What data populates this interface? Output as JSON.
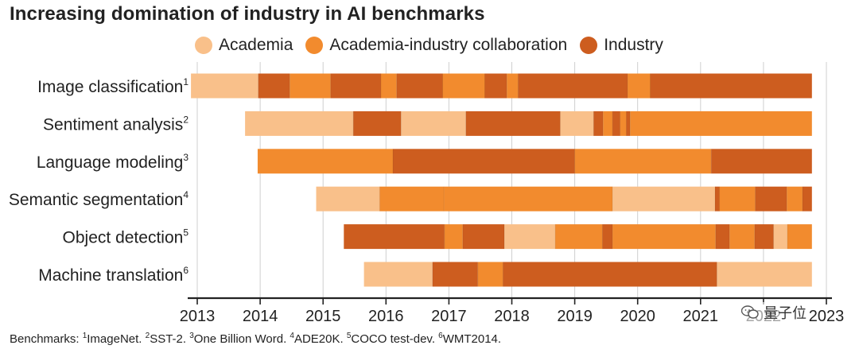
{
  "chart_data": {
    "type": "bar",
    "orientation": "horizontal-timeline",
    "title": "Increasing domination of industry in AI benchmarks",
    "xlabel": "",
    "ylabel": "",
    "xlim": [
      2013,
      2023
    ],
    "x_ticks": [
      2013,
      2014,
      2015,
      2016,
      2017,
      2018,
      2019,
      2020,
      2021,
      2022,
      2023
    ],
    "categories_legend": [
      {
        "key": "academia",
        "label": "Academia",
        "color": "#f9c08a"
      },
      {
        "key": "collab",
        "label": "Academia-industry collaboration",
        "color": "#f28b2e"
      },
      {
        "key": "industry",
        "label": "Industry",
        "color": "#cd5d1f"
      }
    ],
    "rows": [
      {
        "label": "Image classification",
        "sup": "1",
        "segments": [
          {
            "start": 2012.9,
            "end": 2013.97,
            "type": "academia"
          },
          {
            "start": 2013.97,
            "end": 2014.47,
            "type": "industry"
          },
          {
            "start": 2014.47,
            "end": 2015.12,
            "type": "collab"
          },
          {
            "start": 2015.12,
            "end": 2015.92,
            "type": "industry"
          },
          {
            "start": 2015.92,
            "end": 2016.17,
            "type": "collab"
          },
          {
            "start": 2016.17,
            "end": 2016.9,
            "type": "industry"
          },
          {
            "start": 2016.9,
            "end": 2017.57,
            "type": "collab"
          },
          {
            "start": 2017.57,
            "end": 2017.92,
            "type": "industry"
          },
          {
            "start": 2017.92,
            "end": 2018.1,
            "type": "collab"
          },
          {
            "start": 2018.1,
            "end": 2019.84,
            "type": "industry"
          },
          {
            "start": 2019.84,
            "end": 2020.2,
            "type": "collab"
          },
          {
            "start": 2020.2,
            "end": 2022.77,
            "type": "industry"
          }
        ]
      },
      {
        "label": "Sentiment analysis",
        "sup": "2",
        "segments": [
          {
            "start": 2013.76,
            "end": 2015.48,
            "type": "academia"
          },
          {
            "start": 2015.48,
            "end": 2016.24,
            "type": "industry"
          },
          {
            "start": 2016.24,
            "end": 2017.27,
            "type": "academia"
          },
          {
            "start": 2017.27,
            "end": 2018.77,
            "type": "industry"
          },
          {
            "start": 2018.77,
            "end": 2019.3,
            "type": "academia"
          },
          {
            "start": 2019.3,
            "end": 2019.45,
            "type": "industry"
          },
          {
            "start": 2019.45,
            "end": 2019.6,
            "type": "collab"
          },
          {
            "start": 2019.6,
            "end": 2019.72,
            "type": "industry"
          },
          {
            "start": 2019.72,
            "end": 2019.82,
            "type": "collab"
          },
          {
            "start": 2019.82,
            "end": 2019.88,
            "type": "industry"
          },
          {
            "start": 2019.88,
            "end": 2022.77,
            "type": "collab"
          }
        ]
      },
      {
        "label": "Language modeling",
        "sup": "3",
        "segments": [
          {
            "start": 2013.96,
            "end": 2016.11,
            "type": "collab"
          },
          {
            "start": 2016.11,
            "end": 2019.0,
            "type": "industry"
          },
          {
            "start": 2019.0,
            "end": 2021.17,
            "type": "collab"
          },
          {
            "start": 2021.17,
            "end": 2022.77,
            "type": "industry"
          }
        ]
      },
      {
        "label": "Semantic segmentation",
        "sup": "4",
        "segments": [
          {
            "start": 2014.89,
            "end": 2015.9,
            "type": "academia"
          },
          {
            "start": 2015.9,
            "end": 2016.92,
            "type": "collab"
          },
          {
            "start": 2016.92,
            "end": 2019.6,
            "type": "collab"
          },
          {
            "start": 2019.6,
            "end": 2021.23,
            "type": "academia"
          },
          {
            "start": 2021.23,
            "end": 2021.3,
            "type": "industry"
          },
          {
            "start": 2021.3,
            "end": 2021.87,
            "type": "collab"
          },
          {
            "start": 2021.87,
            "end": 2022.37,
            "type": "industry"
          },
          {
            "start": 2022.37,
            "end": 2022.62,
            "type": "collab"
          },
          {
            "start": 2022.62,
            "end": 2022.77,
            "type": "industry"
          }
        ]
      },
      {
        "label": "Object detection",
        "sup": "5",
        "segments": [
          {
            "start": 2015.33,
            "end": 2016.93,
            "type": "industry"
          },
          {
            "start": 2016.93,
            "end": 2017.22,
            "type": "collab"
          },
          {
            "start": 2017.22,
            "end": 2017.88,
            "type": "industry"
          },
          {
            "start": 2017.88,
            "end": 2018.69,
            "type": "academia"
          },
          {
            "start": 2018.69,
            "end": 2019.44,
            "type": "collab"
          },
          {
            "start": 2019.44,
            "end": 2019.6,
            "type": "industry"
          },
          {
            "start": 2019.6,
            "end": 2021.24,
            "type": "collab"
          },
          {
            "start": 2021.24,
            "end": 2021.46,
            "type": "industry"
          },
          {
            "start": 2021.46,
            "end": 2021.86,
            "type": "collab"
          },
          {
            "start": 2021.86,
            "end": 2022.16,
            "type": "industry"
          },
          {
            "start": 2022.16,
            "end": 2022.38,
            "type": "academia"
          },
          {
            "start": 2022.38,
            "end": 2022.77,
            "type": "collab"
          }
        ]
      },
      {
        "label": "Machine translation",
        "sup": "6",
        "segments": [
          {
            "start": 2015.65,
            "end": 2016.74,
            "type": "academia"
          },
          {
            "start": 2016.74,
            "end": 2017.46,
            "type": "industry"
          },
          {
            "start": 2017.46,
            "end": 2017.86,
            "type": "collab"
          },
          {
            "start": 2017.86,
            "end": 2021.26,
            "type": "industry"
          },
          {
            "start": 2021.26,
            "end": 2022.77,
            "type": "academia"
          }
        ]
      }
    ],
    "footnote": {
      "prefix": "Benchmarks: ",
      "items": [
        {
          "sup": "1",
          "text": "ImageNet. "
        },
        {
          "sup": "2",
          "text": "SST-2. "
        },
        {
          "sup": "3",
          "text": "One Billion Word. "
        },
        {
          "sup": "4",
          "text": "ADE20K. "
        },
        {
          "sup": "5",
          "text": "COCO test-dev. "
        },
        {
          "sup": "6",
          "text": "WMT2014."
        }
      ]
    }
  },
  "watermark": {
    "text": "量子位",
    "icon": "wechat-icon"
  }
}
